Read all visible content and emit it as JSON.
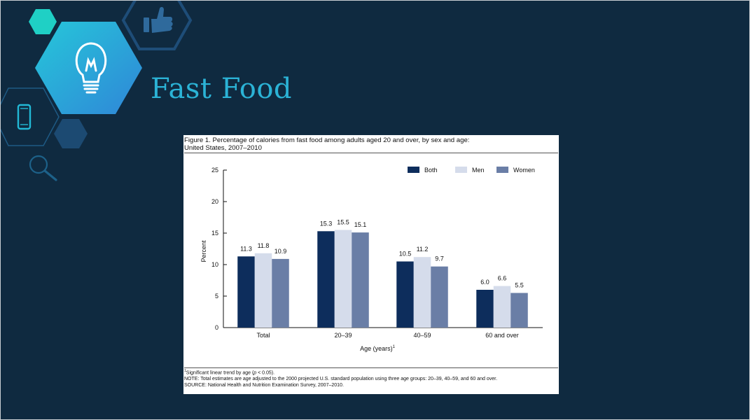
{
  "slide": {
    "title": "Fast Food",
    "icons": [
      "thumbs-up-icon",
      "lightbulb-icon",
      "smartphone-icon",
      "magnifier-icon"
    ],
    "colors": {
      "background": "#0f2a40",
      "title": "#2bb3d6",
      "hex_teal": "#1fd0c5",
      "hex_blue": "#2aa9e0",
      "hex_dark": "#1c4a72"
    }
  },
  "figure": {
    "title_line1": "Figure 1. Percentage of calories from fast food among adults aged 20 and over, by sex and age:",
    "title_line2": "United States, 2007–2010",
    "footnote_sup": "1",
    "footnote_text": "Significant linear trend by age (",
    "footnote_p": "p",
    "footnote_rest": " < 0.05).",
    "note": "NOTE: Total estimates are age adjusted to the 2000 projected U.S. standard population using three age groups: 20–39, 40–59, and 60 and over.",
    "source": "SOURCE: National Health and Nutrition Examination Survey, 2007–2010."
  },
  "chart_data": {
    "type": "bar",
    "title": "Figure 1. Percentage of calories from fast food among adults aged 20 and over, by sex and age: United States, 2007–2010",
    "categories": [
      "Total",
      "20–39",
      "40–59",
      "60 and over"
    ],
    "series": [
      {
        "name": "Both",
        "values": [
          11.3,
          15.3,
          10.5,
          6.0
        ],
        "labels": [
          "11.3",
          "15.3",
          "10.5",
          "6.0"
        ],
        "color": "#0d2d5c"
      },
      {
        "name": "Men",
        "values": [
          11.8,
          15.5,
          11.2,
          6.6
        ],
        "labels": [
          "11.8",
          "15.5",
          "11.2",
          "6.6"
        ],
        "color": "#d5dceb"
      },
      {
        "name": "Women",
        "values": [
          10.9,
          15.1,
          9.7,
          5.5
        ],
        "labels": [
          "10.9",
          "15.1",
          "9.7",
          "5.5"
        ],
        "color": "#6a7ea6"
      }
    ],
    "xlabel": "Age (years)",
    "xlabel_sup": "1",
    "ylabel": "Percent",
    "ylim": [
      0,
      25
    ],
    "yticks": [
      0,
      5,
      10,
      15,
      20,
      25
    ],
    "grid": false,
    "legend": "top-right"
  }
}
